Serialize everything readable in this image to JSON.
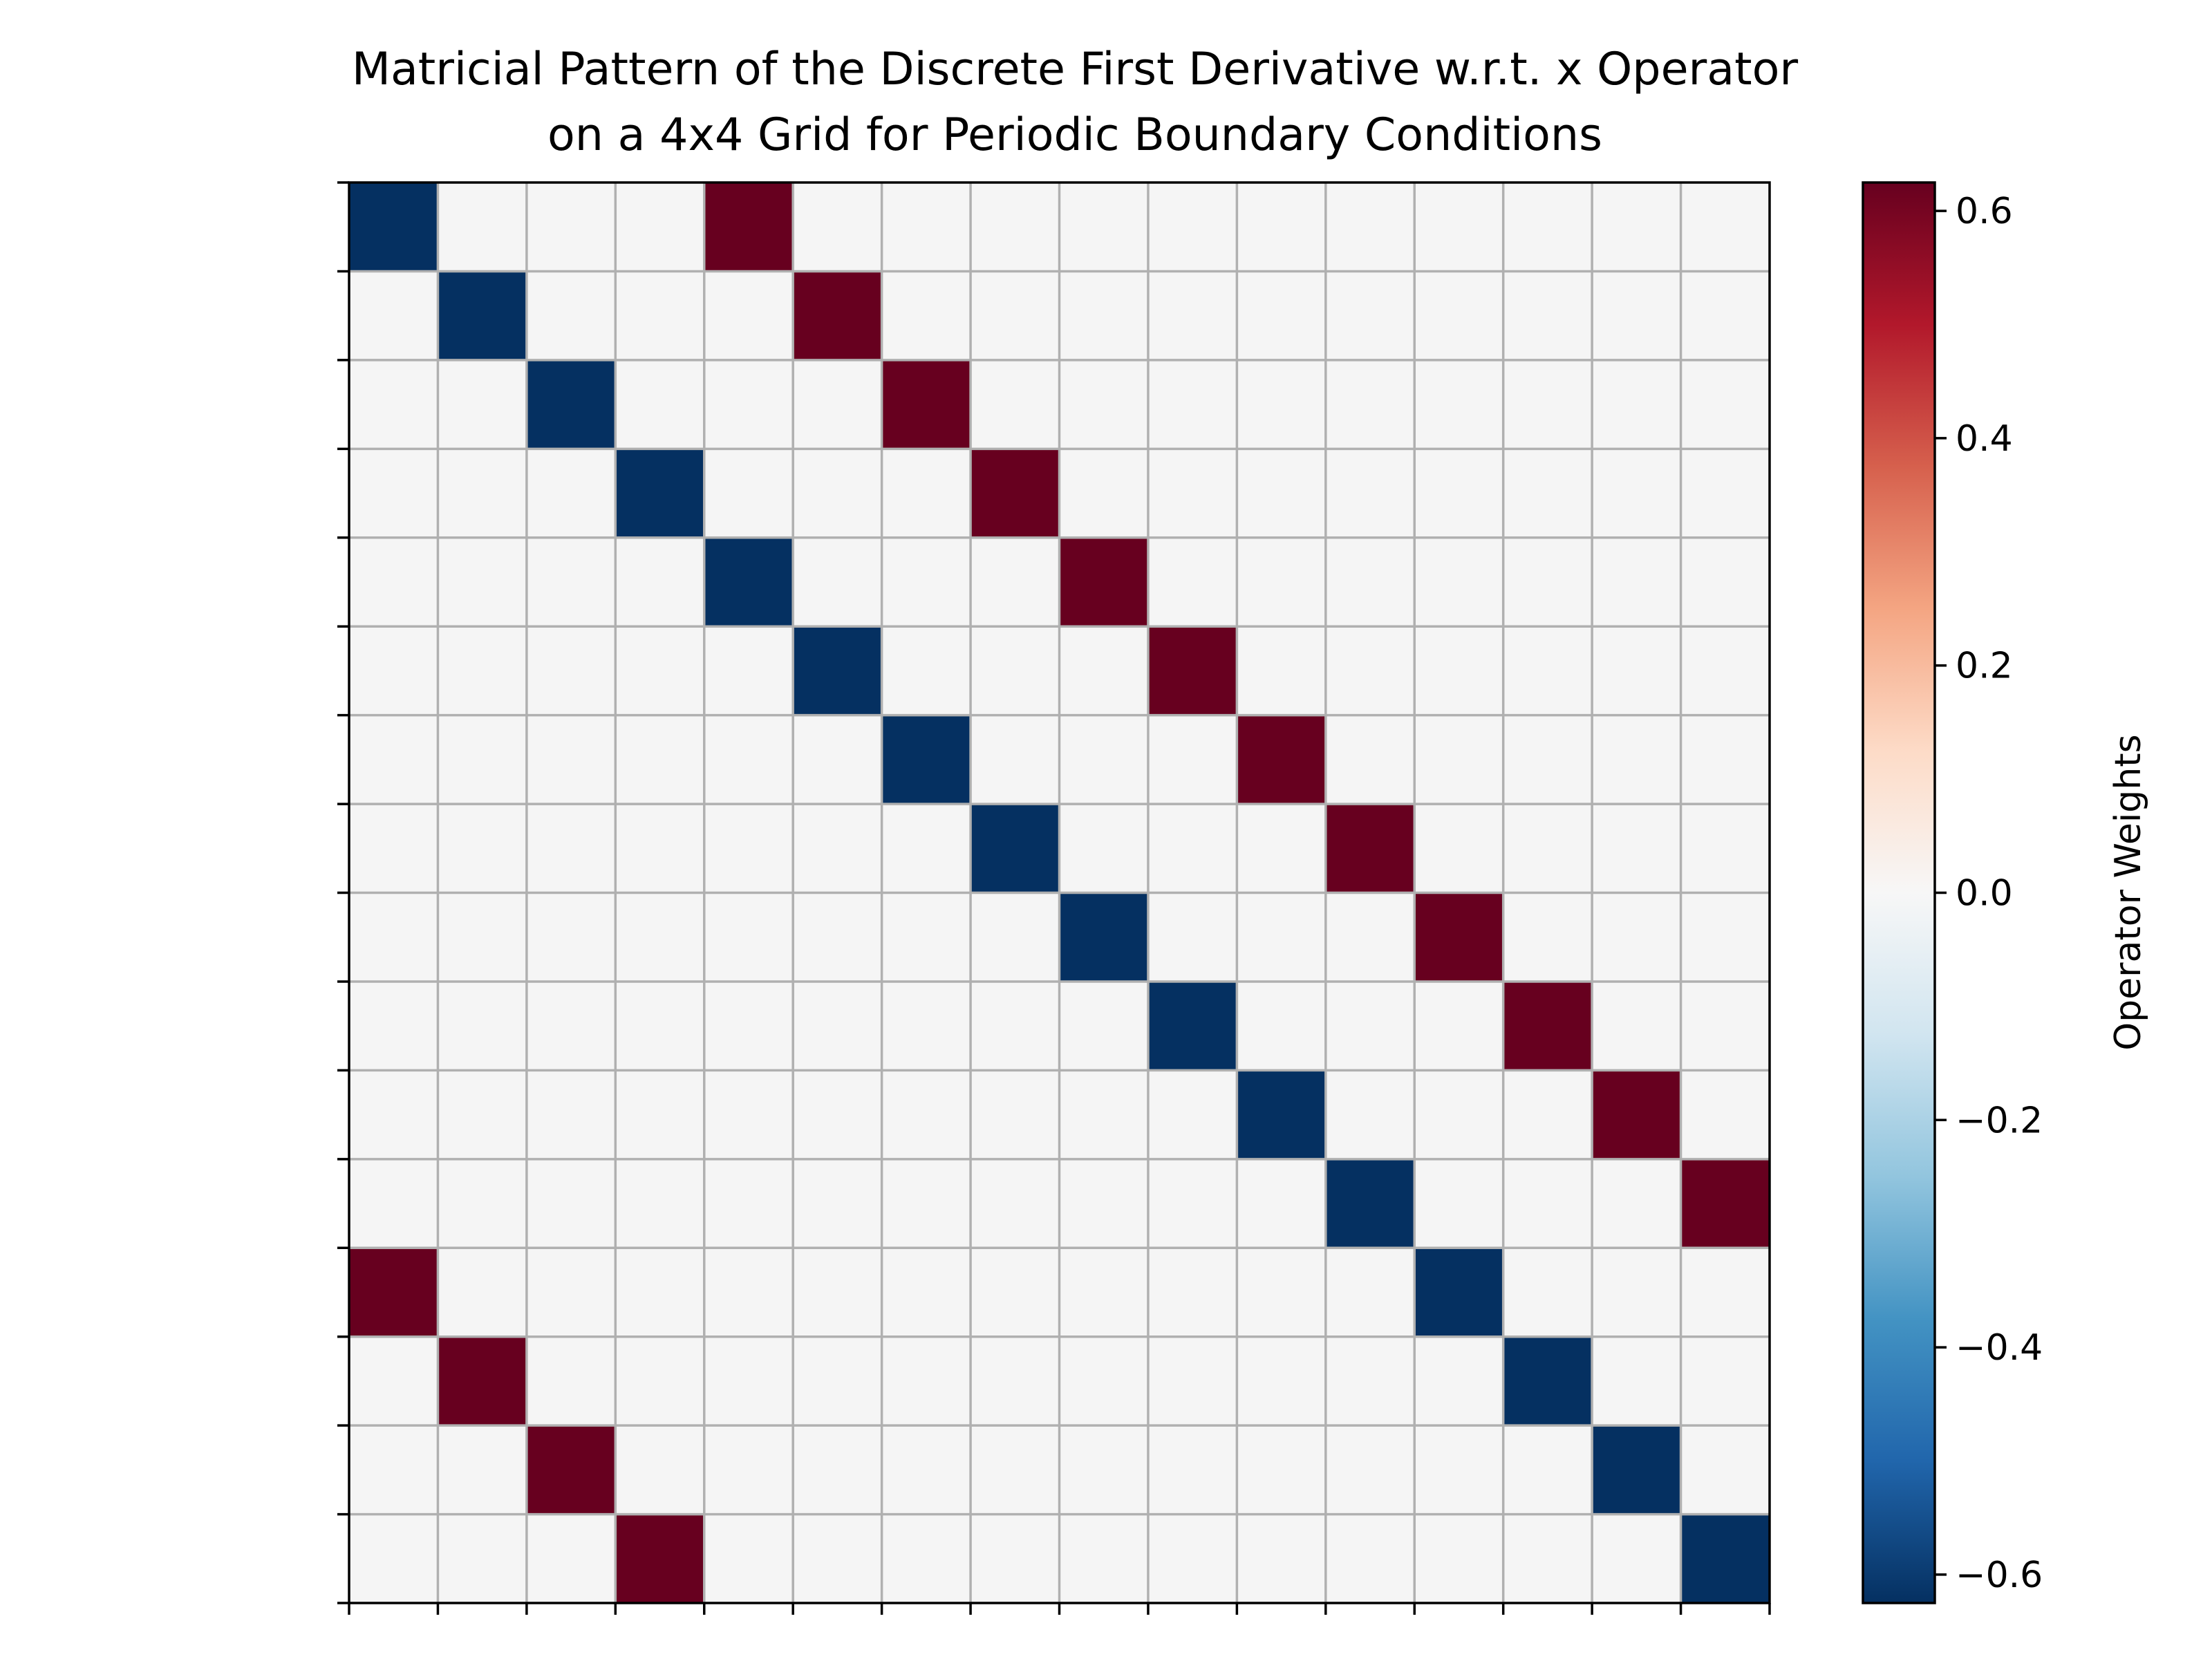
{
  "chart_data": {
    "type": "heatmap",
    "title_lines": [
      "Matricial Pattern of the Discrete First Derivative w.r.t. x Operator",
      "on a 4x4 Grid for Periodic Boundary Conditions"
    ],
    "size": 16,
    "matrix": [
      [
        -0.625,
        0,
        0,
        0,
        0.625,
        0,
        0,
        0,
        0,
        0,
        0,
        0,
        0,
        0,
        0,
        0
      ],
      [
        0,
        -0.625,
        0,
        0,
        0,
        0.625,
        0,
        0,
        0,
        0,
        0,
        0,
        0,
        0,
        0,
        0
      ],
      [
        0,
        0,
        -0.625,
        0,
        0,
        0,
        0.625,
        0,
        0,
        0,
        0,
        0,
        0,
        0,
        0,
        0
      ],
      [
        0,
        0,
        0,
        -0.625,
        0,
        0,
        0,
        0.625,
        0,
        0,
        0,
        0,
        0,
        0,
        0,
        0
      ],
      [
        0,
        0,
        0,
        0,
        -0.625,
        0,
        0,
        0,
        0.625,
        0,
        0,
        0,
        0,
        0,
        0,
        0
      ],
      [
        0,
        0,
        0,
        0,
        0,
        -0.625,
        0,
        0,
        0,
        0.625,
        0,
        0,
        0,
        0,
        0,
        0
      ],
      [
        0,
        0,
        0,
        0,
        0,
        0,
        -0.625,
        0,
        0,
        0,
        0.625,
        0,
        0,
        0,
        0,
        0
      ],
      [
        0,
        0,
        0,
        0,
        0,
        0,
        0,
        -0.625,
        0,
        0,
        0,
        0.625,
        0,
        0,
        0,
        0
      ],
      [
        0,
        0,
        0,
        0,
        0,
        0,
        0,
        0,
        -0.625,
        0,
        0,
        0,
        0.625,
        0,
        0,
        0
      ],
      [
        0,
        0,
        0,
        0,
        0,
        0,
        0,
        0,
        0,
        -0.625,
        0,
        0,
        0,
        0.625,
        0,
        0
      ],
      [
        0,
        0,
        0,
        0,
        0,
        0,
        0,
        0,
        0,
        0,
        -0.625,
        0,
        0,
        0,
        0.625,
        0
      ],
      [
        0,
        0,
        0,
        0,
        0,
        0,
        0,
        0,
        0,
        0,
        0,
        -0.625,
        0,
        0,
        0,
        0.625
      ],
      [
        0.625,
        0,
        0,
        0,
        0,
        0,
        0,
        0,
        0,
        0,
        0,
        0,
        -0.625,
        0,
        0,
        0
      ],
      [
        0,
        0.625,
        0,
        0,
        0,
        0,
        0,
        0,
        0,
        0,
        0,
        0,
        0,
        -0.625,
        0,
        0
      ],
      [
        0,
        0,
        0.625,
        0,
        0,
        0,
        0,
        0,
        0,
        0,
        0,
        0,
        0,
        0,
        -0.625,
        0
      ],
      [
        0,
        0,
        0,
        0.625,
        0,
        0,
        0,
        0,
        0,
        0,
        0,
        0,
        0,
        0,
        0,
        -0.625
      ]
    ],
    "colorbar": {
      "label": "Operator Weights",
      "vmin": -0.625,
      "vmax": 0.625,
      "ticks": [
        0.6,
        0.4,
        0.2,
        0.0,
        -0.2,
        -0.4,
        -0.6
      ],
      "tick_labels": [
        "0.6",
        "0.4",
        "0.2",
        "0.0",
        "−0.2",
        "−0.4",
        "−0.6"
      ],
      "colormap": "RdBu_r",
      "colors": {
        "negative": "#053061",
        "zero": "#f5f5f5",
        "positive": "#67001f"
      }
    },
    "grid": true,
    "grid_color": "#b0b0b0",
    "x_tick_labels": "none",
    "y_tick_labels": "none"
  }
}
